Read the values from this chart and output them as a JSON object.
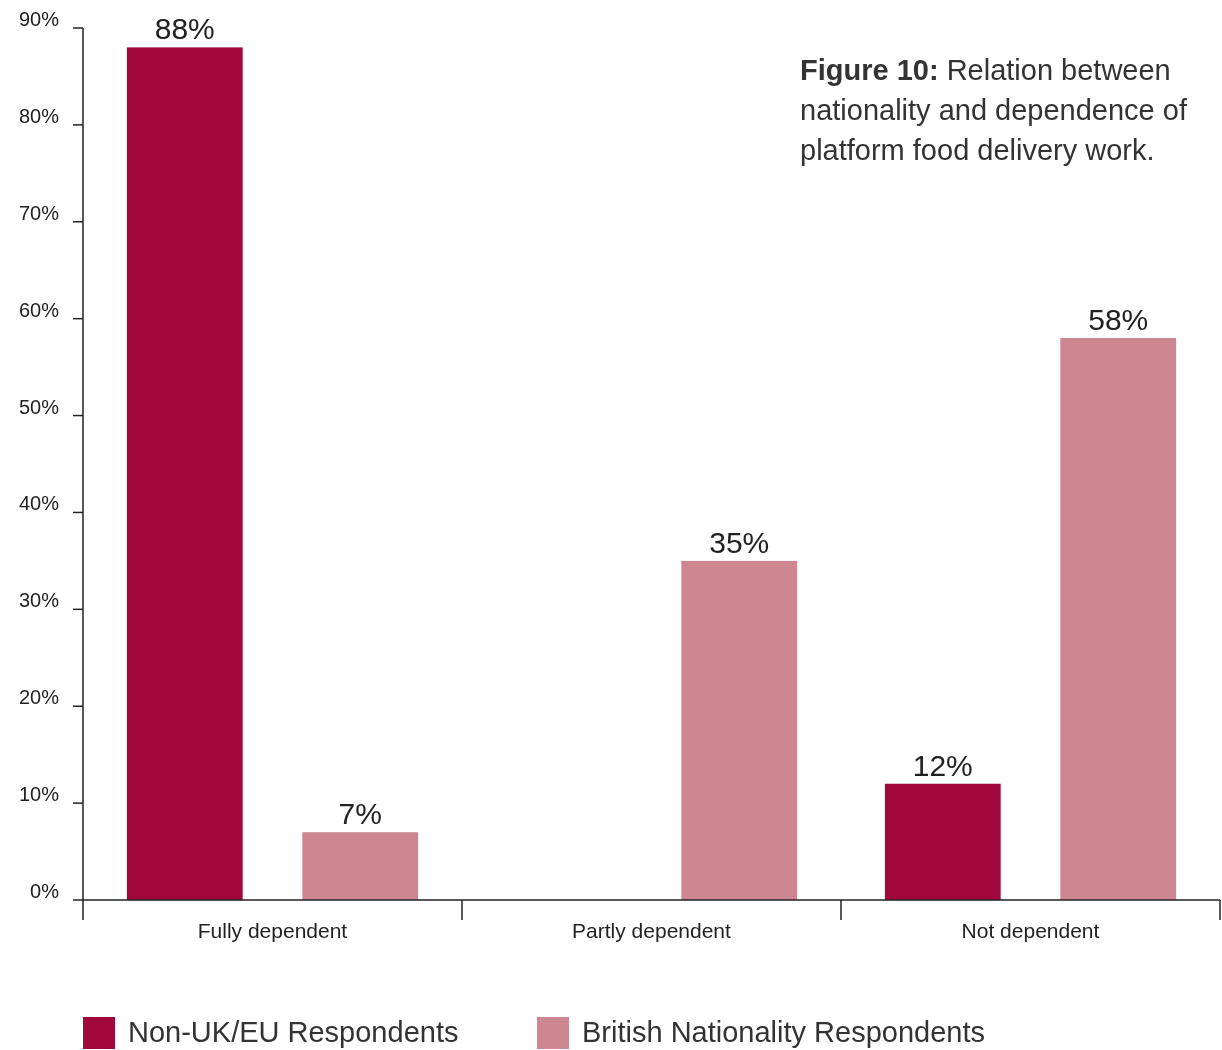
{
  "chart_data": {
    "type": "bar",
    "title": "Figure 10: Relation between nationality and dependence of platform food delivery work.",
    "categories": [
      "Fully dependent",
      "Partly dependent",
      "Not dependent"
    ],
    "series": [
      {
        "name": "Non-UK/EU Respondents",
        "color": "#a0083c",
        "values": [
          88,
          0,
          12
        ],
        "value_labels": [
          "88%",
          null,
          "12%"
        ]
      },
      {
        "name": "British Nationality Respondents",
        "color": "#ce8790",
        "values": [
          7,
          35,
          58
        ],
        "value_labels": [
          "7%",
          "35%",
          "58%"
        ]
      }
    ],
    "ylim": [
      0,
      90
    ],
    "yticks": [
      {
        "value": 0,
        "label": "0%"
      },
      {
        "value": 10,
        "label": "10%"
      },
      {
        "value": 20,
        "label": "20%"
      },
      {
        "value": 30,
        "label": "30%"
      },
      {
        "value": 40,
        "label": "40%"
      },
      {
        "value": 50,
        "label": "50%"
      },
      {
        "value": 60,
        "label": "60%"
      },
      {
        "value": 70,
        "label": "70%"
      },
      {
        "value": 80,
        "label": "80%"
      },
      {
        "value": 90,
        "label": "90%"
      }
    ],
    "grid": false,
    "legend": "bottom"
  }
}
